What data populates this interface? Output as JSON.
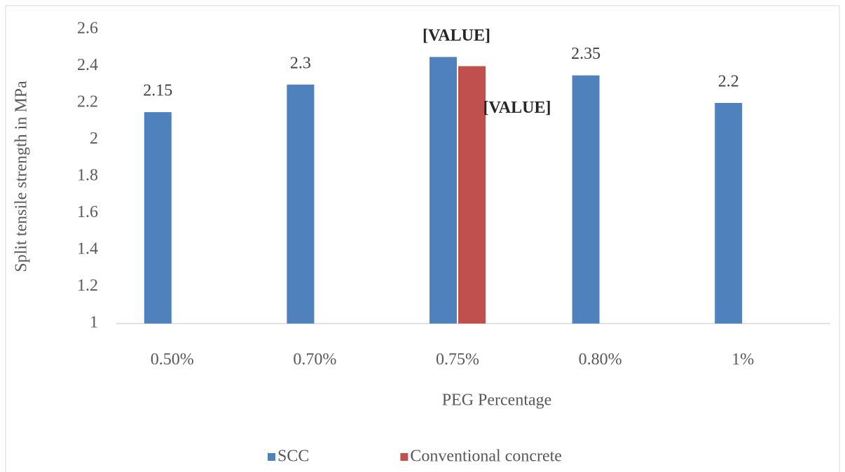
{
  "chart_data": {
    "type": "bar",
    "x_label": "PEG Percentage",
    "y_label": "Split tensile strength in MPa",
    "categories": [
      "0.50%",
      "0.70%",
      "0.75%",
      "0.80%",
      "1%"
    ],
    "series": [
      {
        "name": "SCC",
        "color": "#4f81bd",
        "values": [
          2.15,
          2.3,
          2.45,
          2.35,
          2.2
        ],
        "value_labels": [
          "2.15",
          "2.3",
          "[VALUE]",
          "2.35",
          "2.2"
        ]
      },
      {
        "name": "Conventional concrete",
        "color": "#c0504d",
        "values": [
          null,
          null,
          2.4,
          null,
          null
        ],
        "value_labels": [
          null,
          null,
          "[VALUE]",
          null,
          null
        ]
      }
    ],
    "ylim": [
      1,
      2.6
    ],
    "yticks": [
      1,
      1.2,
      1.4,
      1.6,
      1.8,
      2,
      2.2,
      2.4,
      2.6
    ],
    "grid": false,
    "legend": "bottom"
  }
}
